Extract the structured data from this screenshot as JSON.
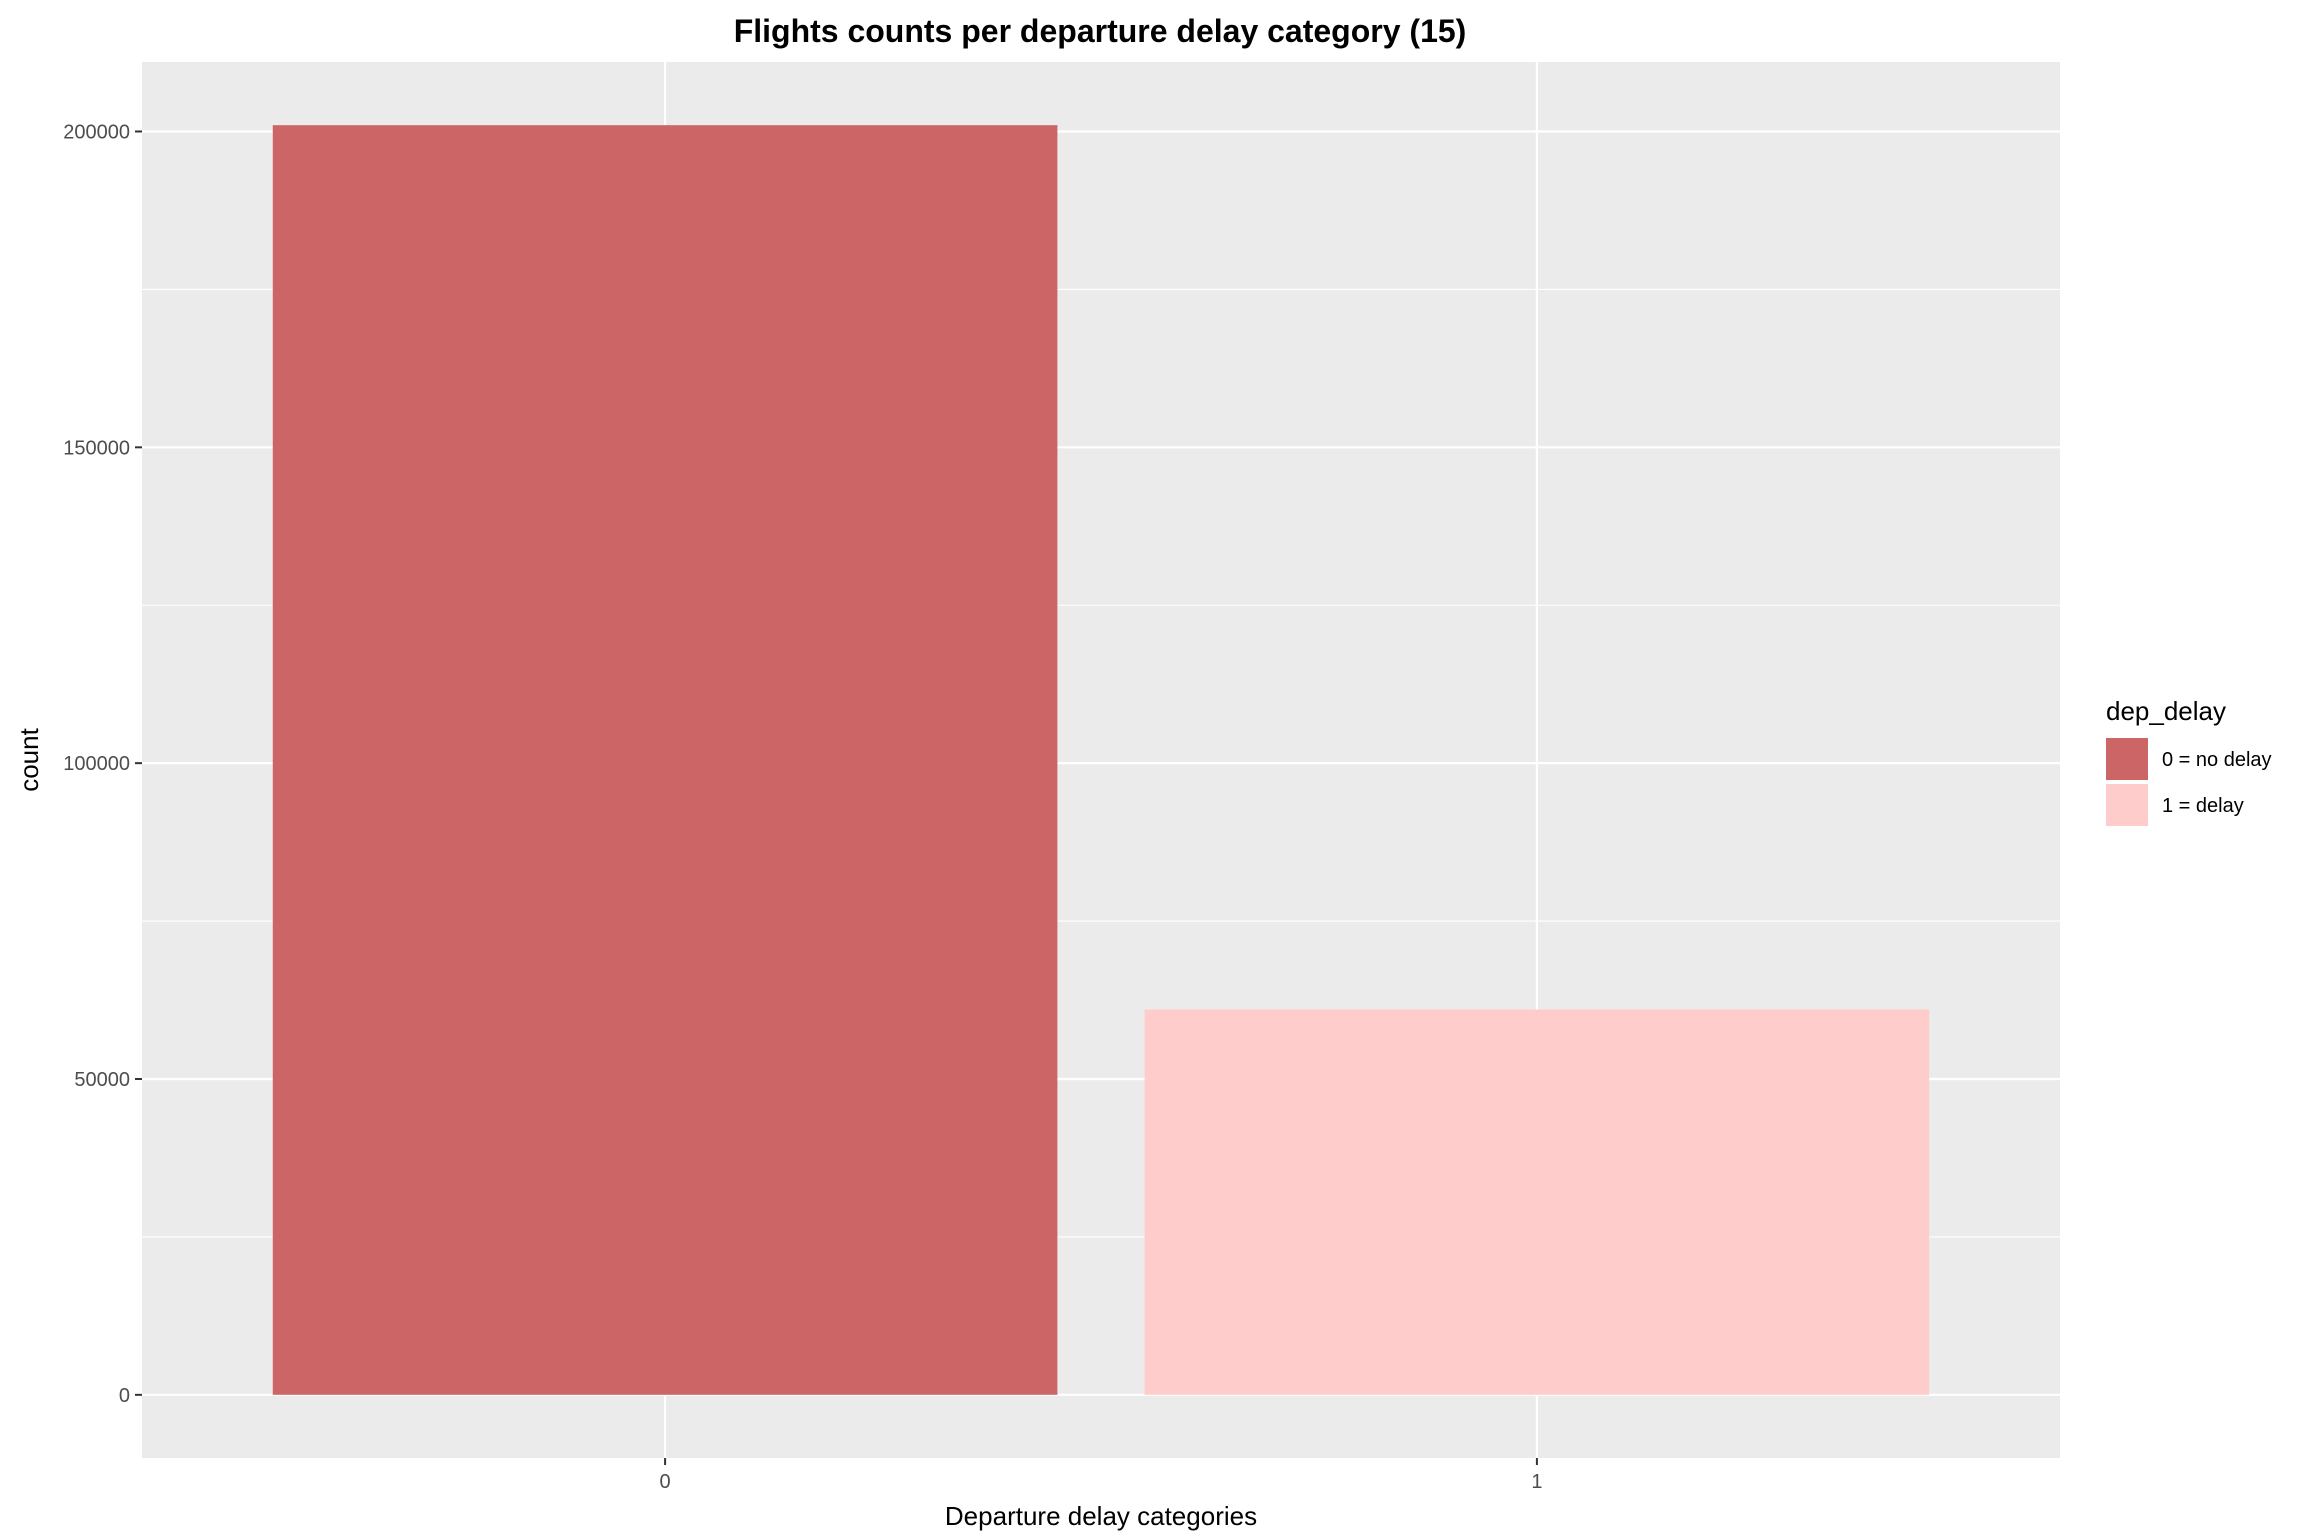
{
  "chart_data": {
    "type": "bar",
    "title": "Flights counts per departure delay category (15)",
    "xlabel": "Departure delay categories",
    "ylabel": "count",
    "categories": [
      "0",
      "1"
    ],
    "values": [
      201000,
      61000
    ],
    "ylim": [
      -10000,
      211000
    ],
    "yticks": [
      0,
      50000,
      100000,
      150000,
      200000
    ],
    "ytick_labels": [
      "0",
      "50000",
      "100000",
      "150000",
      "200000"
    ],
    "grid": true,
    "background_color": "#ebebeb",
    "bar_colors": [
      "#cc6666",
      "#ffcccc"
    ],
    "legend": {
      "title": "dep_delay",
      "position": "right",
      "items": [
        {
          "label": "0 = no delay",
          "color": "#cc6666"
        },
        {
          "label": "1 = delay",
          "color": "#ffcccc"
        }
      ]
    }
  }
}
